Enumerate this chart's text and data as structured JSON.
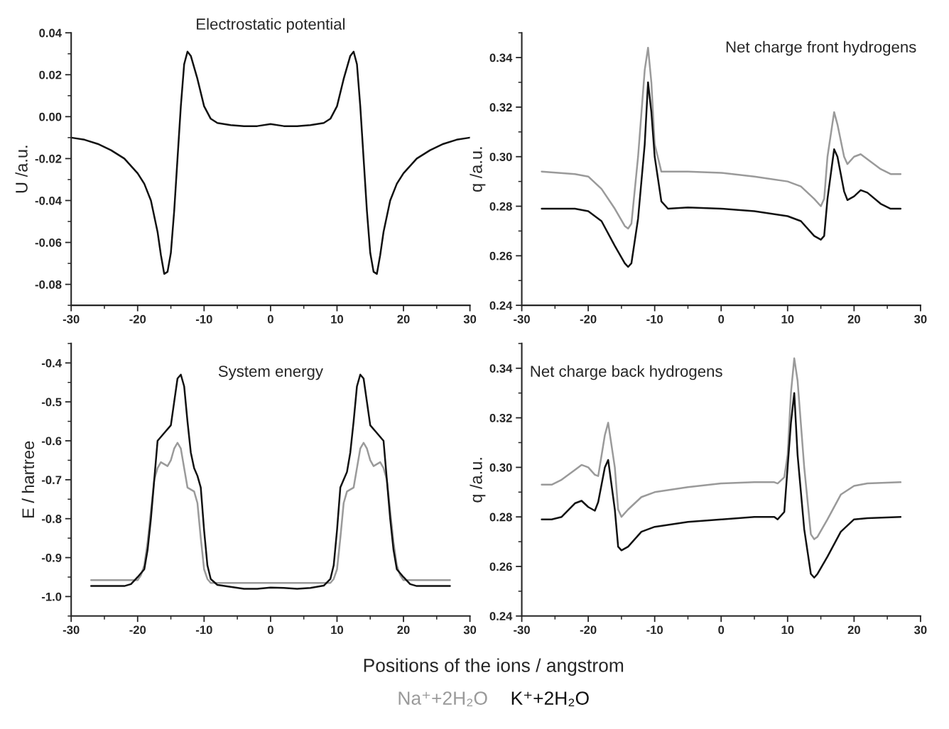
{
  "chart_data": [
    {
      "type": "line",
      "title": "Electrostatic potential",
      "ylabel": "U /a.u.",
      "xlim": [
        -30,
        30
      ],
      "xticks": [
        -30,
        -20,
        -10,
        0,
        10,
        20,
        30
      ],
      "ylim": [
        -0.09,
        0.04
      ],
      "yticks": [
        {
          "value": -0.08,
          "label": "-0.08"
        },
        {
          "value": -0.06,
          "label": "-0.06"
        },
        {
          "value": -0.04,
          "label": "-0.04"
        },
        {
          "value": -0.02,
          "label": "-0.02"
        },
        {
          "value": 0,
          "label": "0.00"
        },
        0.02,
        0.04
      ],
      "grid": false,
      "series": [
        {
          "color": "#111111",
          "x": [
            -30,
            -28,
            -26,
            -24,
            -22,
            -20,
            -19,
            -18,
            -17,
            -16.5,
            -16,
            -15.5,
            -15,
            -14.5,
            -14,
            -13.5,
            -13,
            -12.5,
            -12,
            -11,
            -10,
            -9,
            -8,
            -6,
            -4,
            -2,
            0,
            2,
            4,
            6,
            8,
            9,
            10,
            11,
            12,
            12.5,
            13,
            13.5,
            14,
            14.5,
            15,
            15.5,
            16,
            16.5,
            17,
            18,
            19,
            20,
            22,
            24,
            26,
            28,
            30
          ],
          "values": [
            -0.01,
            -0.011,
            -0.013,
            -0.016,
            -0.02,
            -0.027,
            -0.032,
            -0.04,
            -0.055,
            -0.066,
            -0.075,
            -0.074,
            -0.065,
            -0.045,
            -0.02,
            0.005,
            0.025,
            0.031,
            0.029,
            0.018,
            0.005,
            -0.001,
            -0.003,
            -0.004,
            -0.0045,
            -0.0045,
            -0.0035,
            -0.0045,
            -0.0045,
            -0.004,
            -0.003,
            -0.001,
            0.005,
            0.018,
            0.029,
            0.031,
            0.025,
            0.005,
            -0.02,
            -0.045,
            -0.065,
            -0.074,
            -0.075,
            -0.066,
            -0.055,
            -0.04,
            -0.032,
            -0.027,
            -0.02,
            -0.016,
            -0.013,
            -0.011,
            -0.01
          ]
        }
      ]
    },
    {
      "type": "line",
      "title": "Net charge front hydrogens",
      "ylabel": "q /a.u.",
      "xlim": [
        -30,
        30
      ],
      "xticks": [
        -30,
        -20,
        -10,
        0,
        10,
        20,
        30
      ],
      "ylim": [
        0.24,
        0.35
      ],
      "yticks": [
        0.24,
        0.26,
        0.28,
        {
          "value": 0.3,
          "label": "0.30"
        },
        0.32,
        0.34
      ],
      "grid": false,
      "legend": "bottom",
      "series": [
        {
          "name": "Na⁺+2H₂O",
          "color": "#9a9a9a",
          "x": [
            -27,
            -22,
            -20,
            -18,
            -16,
            -14.5,
            -14,
            -13.5,
            -12.5,
            -11.5,
            -11,
            -10.5,
            -10,
            -9,
            -5,
            0,
            5,
            10,
            12,
            14,
            15,
            15.5,
            16,
            17,
            17.5,
            18.5,
            19,
            20,
            21,
            22,
            24,
            25.5,
            27
          ],
          "values": [
            0.294,
            0.293,
            0.292,
            0.287,
            0.279,
            0.272,
            0.271,
            0.273,
            0.3,
            0.335,
            0.344,
            0.33,
            0.305,
            0.294,
            0.294,
            0.2935,
            0.292,
            0.29,
            0.288,
            0.283,
            0.28,
            0.283,
            0.3,
            0.318,
            0.313,
            0.3,
            0.297,
            0.3,
            0.301,
            0.299,
            0.295,
            0.293,
            0.293
          ]
        },
        {
          "name": "K⁺+2H₂O",
          "color": "#111111",
          "x": [
            -27,
            -22,
            -20,
            -18,
            -16,
            -14.5,
            -14,
            -13.5,
            -12.5,
            -11.5,
            -11,
            -10.5,
            -10,
            -9,
            -8,
            -5,
            0,
            5,
            10,
            12,
            14,
            15,
            15.5,
            16,
            17,
            17.5,
            18.5,
            19,
            20,
            21,
            22,
            24,
            25.5,
            27
          ],
          "values": [
            0.279,
            0.279,
            0.278,
            0.274,
            0.264,
            0.257,
            0.2555,
            0.257,
            0.275,
            0.305,
            0.33,
            0.318,
            0.3,
            0.282,
            0.279,
            0.2795,
            0.279,
            0.278,
            0.276,
            0.274,
            0.268,
            0.2665,
            0.268,
            0.283,
            0.303,
            0.3,
            0.286,
            0.2825,
            0.284,
            0.2865,
            0.2855,
            0.281,
            0.279,
            0.279
          ]
        }
      ]
    },
    {
      "type": "line",
      "title": "System energy",
      "ylabel": "E / hartree",
      "xlabel": "Positions of the ions / angstrom",
      "xlim": [
        -30,
        30
      ],
      "xticks": [
        -30,
        -20,
        -10,
        0,
        10,
        20,
        30
      ],
      "ylim": [
        -1.05,
        -0.35
      ],
      "yticks": [
        {
          "value": -1.0,
          "label": "-1.0"
        },
        -0.9,
        -0.8,
        -0.7,
        -0.6,
        -0.5,
        -0.4
      ],
      "grid": false,
      "series": [
        {
          "color": "#9a9a9a",
          "x": [
            -27,
            -20,
            -19.5,
            -19,
            -18.5,
            -18,
            -17.5,
            -17,
            -16.5,
            -16,
            -15.5,
            -15,
            -14.5,
            -14,
            -13.5,
            -13,
            -12.5,
            -12,
            -11.5,
            -11,
            -10.5,
            -10,
            -9.5,
            -9,
            0,
            9,
            9.5,
            10,
            10.5,
            11,
            11.5,
            12,
            12.5,
            13,
            13.5,
            14,
            14.5,
            15,
            15.5,
            16,
            16.5,
            17,
            17.5,
            18,
            18.5,
            19,
            19.5,
            20,
            27
          ],
          "values": [
            -0.958,
            -0.958,
            -0.945,
            -0.92,
            -0.86,
            -0.78,
            -0.7,
            -0.67,
            -0.655,
            -0.66,
            -0.665,
            -0.65,
            -0.62,
            -0.605,
            -0.62,
            -0.67,
            -0.72,
            -0.725,
            -0.73,
            -0.76,
            -0.85,
            -0.93,
            -0.955,
            -0.965,
            -0.965,
            -0.965,
            -0.955,
            -0.93,
            -0.85,
            -0.76,
            -0.73,
            -0.725,
            -0.72,
            -0.67,
            -0.62,
            -0.605,
            -0.62,
            -0.65,
            -0.665,
            -0.66,
            -0.655,
            -0.67,
            -0.7,
            -0.78,
            -0.86,
            -0.92,
            -0.945,
            -0.958,
            -0.958
          ]
        },
        {
          "color": "#111111",
          "x": [
            -27,
            -22,
            -21,
            -20,
            -19,
            -18.5,
            -18,
            -17.5,
            -17,
            -16,
            -15,
            -14.5,
            -14,
            -13.5,
            -13,
            -12.5,
            -12,
            -11.5,
            -11,
            -10.5,
            -10,
            -9.5,
            -9,
            -8,
            -6,
            -4,
            -2,
            0,
            2,
            4,
            6,
            8,
            9,
            9.5,
            10,
            10.5,
            11,
            11.5,
            12,
            12.5,
            13,
            13.5,
            14,
            14.5,
            15,
            16,
            17,
            17.5,
            18,
            18.5,
            19,
            20,
            21,
            22,
            27
          ],
          "values": [
            -0.973,
            -0.973,
            -0.968,
            -0.95,
            -0.93,
            -0.88,
            -0.8,
            -0.7,
            -0.6,
            -0.58,
            -0.56,
            -0.5,
            -0.44,
            -0.43,
            -0.46,
            -0.55,
            -0.63,
            -0.67,
            -0.69,
            -0.72,
            -0.83,
            -0.92,
            -0.955,
            -0.97,
            -0.975,
            -0.98,
            -0.98,
            -0.977,
            -0.978,
            -0.98,
            -0.978,
            -0.972,
            -0.955,
            -0.92,
            -0.83,
            -0.72,
            -0.7,
            -0.68,
            -0.63,
            -0.55,
            -0.46,
            -0.43,
            -0.44,
            -0.5,
            -0.56,
            -0.58,
            -0.6,
            -0.7,
            -0.8,
            -0.88,
            -0.93,
            -0.95,
            -0.968,
            -0.973,
            -0.973
          ]
        }
      ]
    },
    {
      "type": "line",
      "title": "Net charge back hydrogens",
      "ylabel": "q /a.u.",
      "xlim": [
        -30,
        30
      ],
      "xticks": [
        -30,
        -20,
        -10,
        0,
        10,
        20,
        30
      ],
      "ylim": [
        0.24,
        0.35
      ],
      "yticks": [
        0.24,
        0.26,
        0.28,
        {
          "value": 0.3,
          "label": "0.30"
        },
        0.32,
        0.34
      ],
      "grid": false,
      "series": [
        {
          "color": "#9a9a9a",
          "x": [
            -27,
            -25.5,
            -24,
            -22,
            -21,
            -20,
            -19,
            -18.5,
            -17.5,
            -17,
            -16,
            -15.5,
            -15,
            -14,
            -12,
            -10,
            -5,
            0,
            5,
            8,
            8.5,
            9.5,
            10,
            10.5,
            11,
            11.5,
            12.5,
            13.5,
            14,
            14.5,
            16,
            18,
            20,
            22,
            27
          ],
          "values": [
            0.293,
            0.293,
            0.295,
            0.299,
            0.301,
            0.3,
            0.297,
            0.2965,
            0.313,
            0.318,
            0.3,
            0.283,
            0.28,
            0.283,
            0.288,
            0.29,
            0.292,
            0.2935,
            0.294,
            0.294,
            0.2935,
            0.296,
            0.305,
            0.33,
            0.344,
            0.335,
            0.3,
            0.273,
            0.271,
            0.272,
            0.279,
            0.289,
            0.2925,
            0.2935,
            0.294
          ]
        },
        {
          "color": "#111111",
          "x": [
            -27,
            -25.5,
            -24,
            -22,
            -21,
            -20,
            -19,
            -18.5,
            -17.5,
            -17,
            -16,
            -15.5,
            -15,
            -14,
            -12,
            -10,
            -5,
            0,
            5,
            8,
            8.5,
            9.5,
            10,
            10.5,
            11,
            11.5,
            12.5,
            13.5,
            14,
            14.5,
            16,
            18,
            20,
            22,
            27
          ],
          "values": [
            0.279,
            0.279,
            0.28,
            0.2855,
            0.2865,
            0.284,
            0.2825,
            0.286,
            0.3,
            0.303,
            0.283,
            0.268,
            0.2665,
            0.268,
            0.274,
            0.276,
            0.278,
            0.279,
            0.28,
            0.28,
            0.279,
            0.282,
            0.3,
            0.318,
            0.33,
            0.305,
            0.275,
            0.257,
            0.2555,
            0.257,
            0.264,
            0.274,
            0.279,
            0.2795,
            0.28
          ]
        }
      ]
    }
  ]
}
